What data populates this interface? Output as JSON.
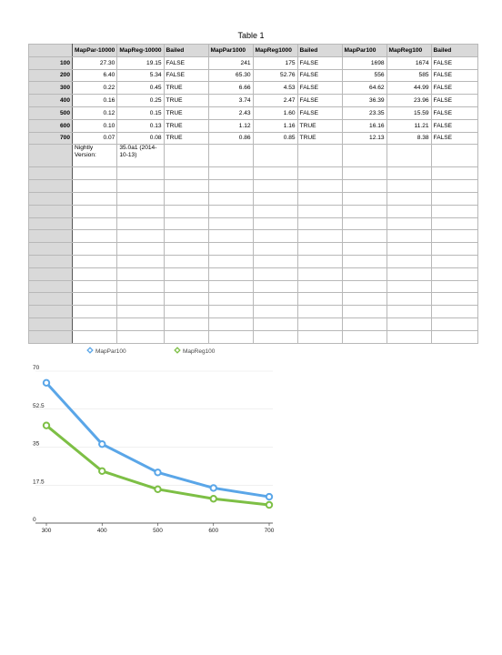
{
  "table": {
    "title": "Table 1",
    "headers": [
      "",
      "MapPar-10000",
      "MapReg-10000",
      "Bailed",
      "MapPar1000",
      "MapReg1000",
      "Bailed",
      "MapPar100",
      "MapReg100",
      "Bailed"
    ],
    "rows": [
      [
        "100",
        "27.30",
        "19.15",
        "FALSE",
        "241",
        "175",
        "FALSE",
        "1698",
        "1674",
        "FALSE"
      ],
      [
        "200",
        "6.40",
        "5.34",
        "FALSE",
        "65.30",
        "52.76",
        "FALSE",
        "556",
        "585",
        "FALSE"
      ],
      [
        "300",
        "0.22",
        "0.45",
        "TRUE",
        "6.66",
        "4.53",
        "FALSE",
        "64.62",
        "44.99",
        "FALSE"
      ],
      [
        "400",
        "0.16",
        "0.25",
        "TRUE",
        "3.74",
        "2.47",
        "FALSE",
        "36.39",
        "23.96",
        "FALSE"
      ],
      [
        "500",
        "0.12",
        "0.15",
        "TRUE",
        "2.43",
        "1.60",
        "FALSE",
        "23.35",
        "15.59",
        "FALSE"
      ],
      [
        "600",
        "0.10",
        "0.13",
        "TRUE",
        "1.12",
        "1.16",
        "TRUE",
        "16.16",
        "11.21",
        "FALSE"
      ],
      [
        "700",
        "0.07",
        "0.08",
        "TRUE",
        "0.86",
        "0.85",
        "TRUE",
        "12.13",
        "8.38",
        "FALSE"
      ]
    ],
    "note_label": "Nightly Version:",
    "note_value": "35.0a1 (2014-10-13)",
    "empty_rows": 14
  },
  "chart_data": {
    "type": "line",
    "title": "",
    "xlabel": "",
    "ylabel": "",
    "x": [
      300,
      400,
      500,
      600,
      700
    ],
    "x_ticks": [
      "300",
      "400",
      "500",
      "600",
      "700"
    ],
    "y_ticks": [
      "0",
      "17.5",
      "35",
      "52.5",
      "70"
    ],
    "ylim": [
      0,
      70
    ],
    "grid": true,
    "legend_position": "top",
    "series": [
      {
        "name": "MapPar100",
        "color": "#5aa6e8",
        "values": [
          64.62,
          36.39,
          23.35,
          16.16,
          12.13
        ]
      },
      {
        "name": "MapReg100",
        "color": "#7dbf45",
        "values": [
          44.99,
          23.96,
          15.59,
          11.21,
          8.38
        ]
      }
    ]
  }
}
